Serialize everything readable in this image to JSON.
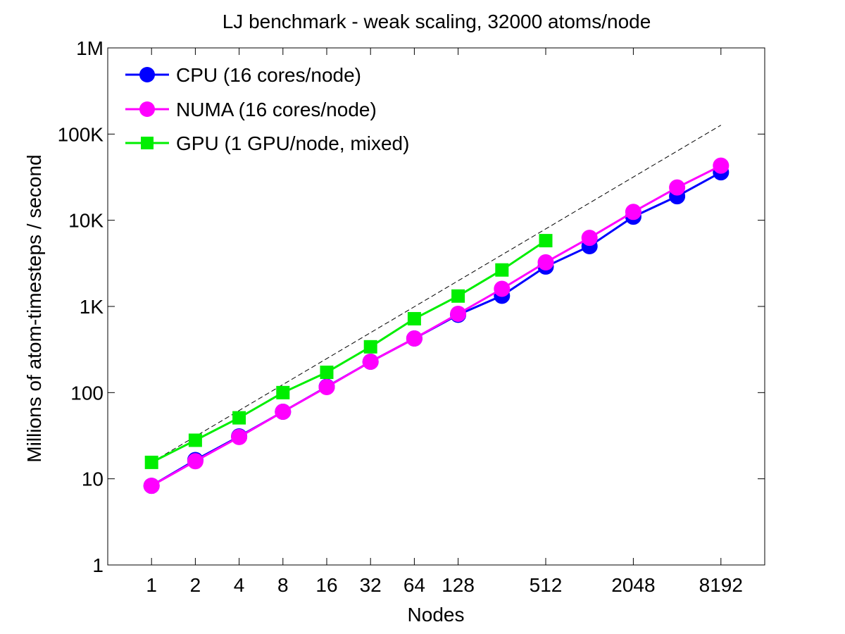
{
  "chart_data": {
    "type": "line",
    "title": "LJ benchmark - weak scaling, 32000 atoms/node",
    "xlabel": "Nodes",
    "ylabel": "Millions of atom-timesteps / second",
    "xscale": "log2",
    "yscale": "log10",
    "xlim": [
      0.5,
      16384
    ],
    "ylim": [
      1,
      1000000
    ],
    "xticks": [
      1,
      2,
      4,
      8,
      16,
      32,
      64,
      128,
      512,
      2048,
      8192
    ],
    "xtick_labels": [
      "1",
      "2",
      "4",
      "8",
      "16",
      "32",
      "64",
      "128",
      "512",
      "2048",
      "8192"
    ],
    "yticks": [
      1,
      10,
      100,
      1000,
      10000,
      100000,
      1000000
    ],
    "ytick_labels": [
      "1",
      "10",
      "100",
      "1K",
      "10K",
      "100K",
      "1M"
    ],
    "grid": false,
    "legend_position": "top-left",
    "series": [
      {
        "name": "CPU (16 cores/node)",
        "color": "#0000ff",
        "marker": "circle",
        "x": [
          1,
          2,
          4,
          8,
          16,
          32,
          64,
          128,
          256,
          512,
          1024,
          2048,
          4096,
          8192
        ],
        "y": [
          8.3,
          16.5,
          31,
          60,
          117,
          228,
          425,
          800,
          1330,
          2900,
          5000,
          11000,
          19000,
          36000
        ]
      },
      {
        "name": "NUMA (16 cores/node)",
        "color": "#ff00ff",
        "marker": "circle",
        "x": [
          1,
          2,
          4,
          8,
          16,
          32,
          64,
          128,
          256,
          512,
          1024,
          2048,
          4096,
          8192
        ],
        "y": [
          8.3,
          16,
          30.5,
          60,
          116,
          228,
          425,
          820,
          1600,
          3250,
          6250,
          12500,
          24000,
          43000
        ]
      },
      {
        "name": "GPU (1 GPU/node, mixed)",
        "color": "#00ee00",
        "marker": "square",
        "x": [
          1,
          2,
          4,
          8,
          16,
          32,
          64,
          128,
          256,
          512
        ],
        "y": [
          15.5,
          28,
          51,
          100,
          172,
          340,
          720,
          1320,
          2650,
          5800
        ]
      }
    ],
    "reference_line": {
      "style": "dashed",
      "color": "#000000",
      "x": [
        1,
        8192
      ],
      "y": [
        15.5,
        127000
      ]
    }
  }
}
